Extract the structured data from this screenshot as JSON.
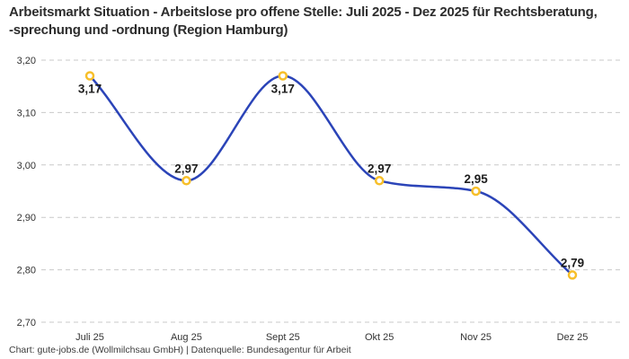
{
  "header": {
    "title": "Arbeitsmarkt Situation - Arbeitslose pro offene Stelle: Juli 2025 - Dez 2025 für Rechtsberatung, -sprechung und -ordnung (Region Hamburg)"
  },
  "footer": {
    "credit": "Chart: gute-jobs.de (Wollmilchsau GmbH) | Datenquelle: Bundesagentur für Arbeit"
  },
  "chart_data": {
    "type": "line",
    "title": "Arbeitsmarkt Situation - Arbeitslose pro offene Stelle: Juli 2025 - Dez 2025 für Rechtsberatung, -sprechung und -ordnung (Region Hamburg)",
    "categories": [
      "Juli 25",
      "Aug 25",
      "Sept 25",
      "Okt 25",
      "Nov 25",
      "Dez 25"
    ],
    "values": [
      3.17,
      2.97,
      3.17,
      2.97,
      2.95,
      2.79
    ],
    "value_labels": [
      "3,17",
      "2,97",
      "3,17",
      "2,97",
      "2,95",
      "2,79"
    ],
    "label_positions": [
      "below",
      "above",
      "below",
      "above",
      "above",
      "above"
    ],
    "y_tick_values": [
      3.2,
      3.1,
      3.0,
      2.9,
      2.8,
      2.7
    ],
    "y_tick_labels": [
      "3,20",
      "3,10",
      "3,00",
      "2,90",
      "2,80",
      "2,70"
    ],
    "ylim": [
      2.7,
      3.2
    ],
    "xlabel": "",
    "ylabel": "",
    "grid": "dashed-horizontal",
    "legend": "none",
    "curve": "monotone",
    "colors": {
      "line": "#2b44b8",
      "marker_stroke": "#f7bf2a",
      "marker_fill": "#ffffff",
      "grid": "#c9c9c9",
      "tick_text": "#333333",
      "data_label": "#1d1d1d",
      "title": "#2d2d2d",
      "footer": "#3c3c3c"
    }
  }
}
